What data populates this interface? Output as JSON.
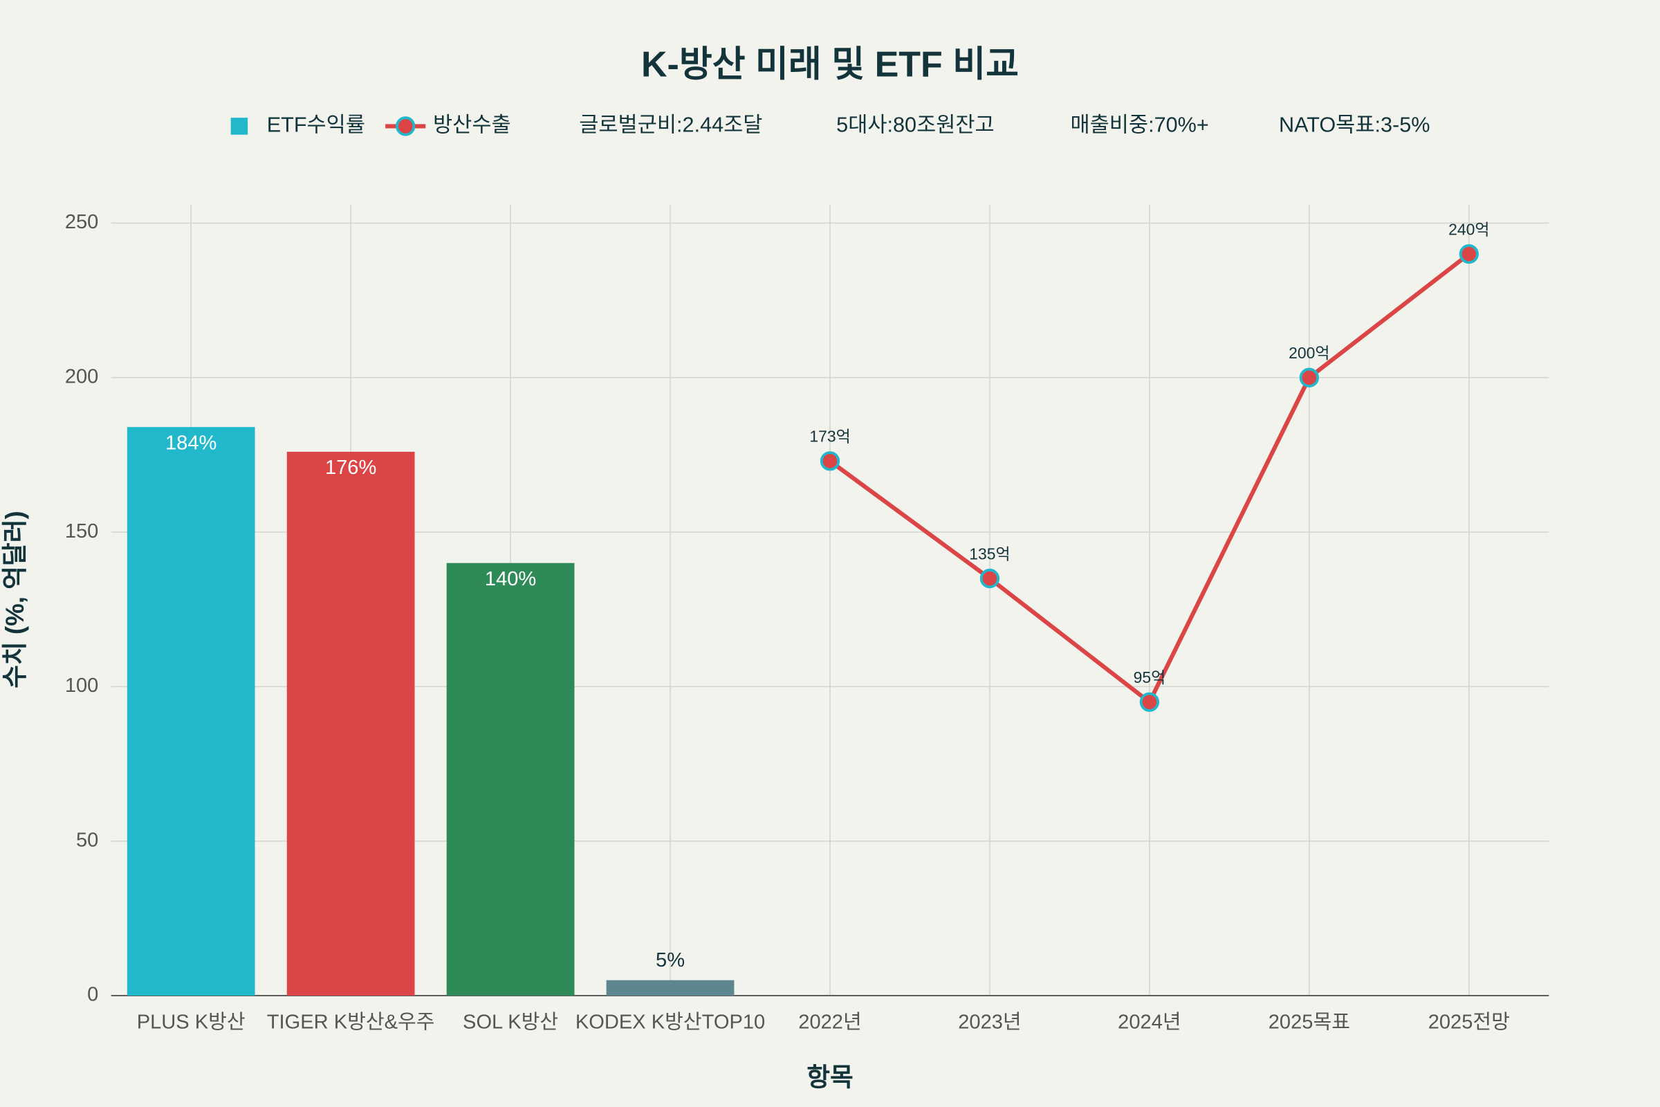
{
  "chart_data": {
    "type": "bar_line",
    "title": "K-방산 미래 및 ETF 비교",
    "x_label": "항목",
    "y_label": "수치 (%, 억달러)",
    "categories": [
      "PLUS K방산",
      "TIGER K방산&우주",
      "SOL K방산",
      "KODEX K방산TOP10",
      "2022년",
      "2023년",
      "2024년",
      "2025목표",
      "2025전망"
    ],
    "series": [
      {
        "name": "ETF수익률",
        "type": "bar",
        "color": [
          "#22b8cc",
          "#db4545",
          "#2e8b57",
          "#5d878f",
          null,
          null,
          null,
          null,
          null
        ],
        "values": [
          184,
          176,
          140,
          5,
          null,
          null,
          null,
          null,
          null
        ],
        "value_labels": [
          "184%",
          "176%",
          "140%",
          "5%",
          null,
          null,
          null,
          null,
          null
        ]
      },
      {
        "name": "방산수출",
        "type": "line",
        "color": "#db4545",
        "marker_edge_color": "#22b8cc",
        "values": [
          null,
          null,
          null,
          null,
          173,
          135,
          95,
          200,
          240
        ],
        "value_labels": [
          null,
          null,
          null,
          null,
          "173억",
          "135억",
          "95억",
          "200억",
          "240억"
        ]
      }
    ],
    "legend_notes": [
      "글로벌군비:2.44조달",
      "5대사:80조원잔고",
      "매출비중:70%+",
      "NATO목표:3-5%"
    ],
    "ylim": [
      0,
      256
    ],
    "yticks": [
      0,
      50,
      100,
      150,
      200,
      250
    ],
    "grid": true
  }
}
